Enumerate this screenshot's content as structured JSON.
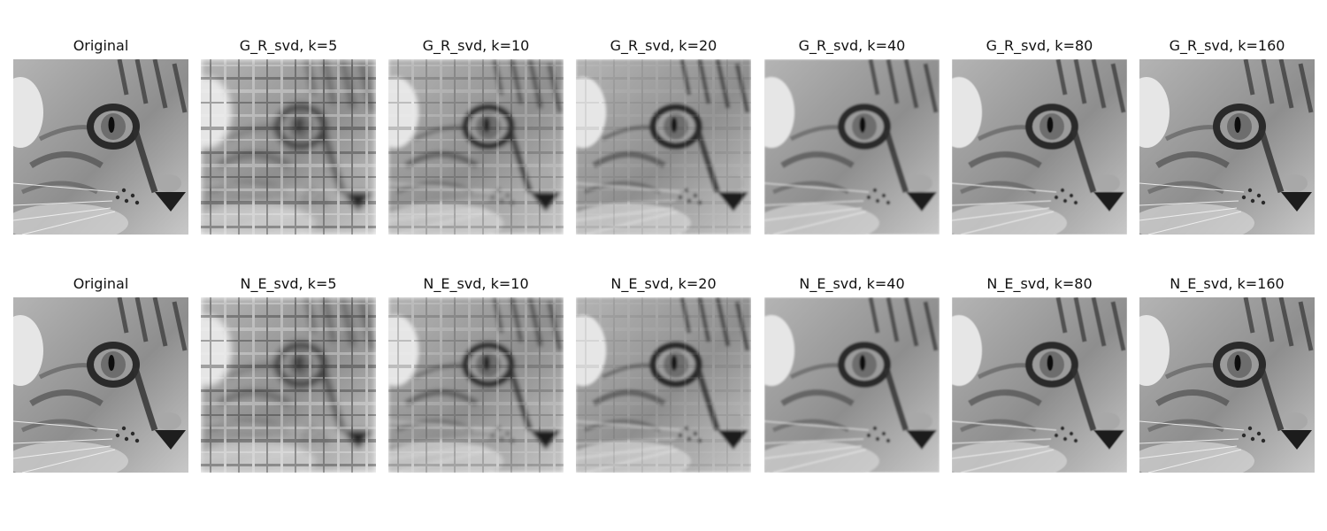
{
  "rows": [
    {
      "panels": [
        {
          "title": "Original",
          "k": null
        },
        {
          "title": "G_R_svd, k=5",
          "k": 5
        },
        {
          "title": "G_R_svd, k=10",
          "k": 10
        },
        {
          "title": "G_R_svd, k=20",
          "k": 20
        },
        {
          "title": "G_R_svd, k=40",
          "k": 40
        },
        {
          "title": "G_R_svd, k=80",
          "k": 80
        },
        {
          "title": "G_R_svd, k=160",
          "k": 160
        }
      ]
    },
    {
      "panels": [
        {
          "title": "Original",
          "k": null
        },
        {
          "title": "N_E_svd, k=5",
          "k": 5
        },
        {
          "title": "N_E_svd, k=10",
          "k": 10
        },
        {
          "title": "N_E_svd, k=20",
          "k": 20
        },
        {
          "title": "N_E_svd, k=40",
          "k": 40
        },
        {
          "title": "N_E_svd, k=80",
          "k": 80
        },
        {
          "title": "N_E_svd, k=160",
          "k": 160
        }
      ]
    }
  ]
}
